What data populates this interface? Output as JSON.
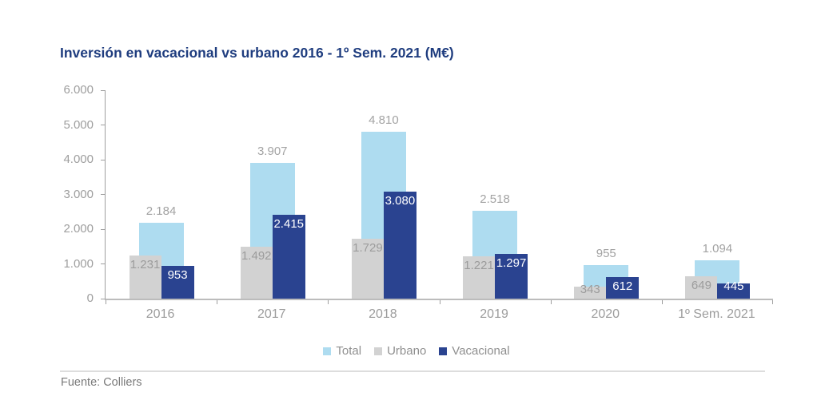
{
  "footer": {
    "source": "Fuente: Colliers"
  },
  "chart_data": {
    "type": "bar",
    "title": "Inversión en vacacional vs urbano 2016 - 1º Sem. 2021 (M€)",
    "title_color": "#1f3d7f",
    "categories": [
      "2016",
      "2017",
      "2018",
      "2019",
      "2020",
      "1º Sem. 2021"
    ],
    "series": [
      {
        "name": "Total",
        "color": "#aedcf0",
        "label_color": "#a3a3a3",
        "label_placement": "outside-top",
        "values": [
          2184,
          3907,
          4810,
          2518,
          955,
          1094
        ],
        "labels": [
          "2.184",
          "3.907",
          "4.810",
          "2.518",
          "955",
          "1.094"
        ]
      },
      {
        "name": "Urbano",
        "color": "#d2d2d2",
        "label_color": "#9c9c9c",
        "label_placement": "inside-top",
        "values": [
          1231,
          1492,
          1729,
          1221,
          343,
          649
        ],
        "labels": [
          "1.231",
          "1.492",
          "1.729",
          "1.221",
          "343",
          "649"
        ]
      },
      {
        "name": "Vacacional",
        "color": "#2a4390",
        "label_color": "#ffffff",
        "label_placement": "inside-top",
        "values": [
          953,
          2415,
          3080,
          1297,
          612,
          445
        ],
        "labels": [
          "953",
          "2.415",
          "3.080",
          "1.297",
          "612",
          "445"
        ]
      }
    ],
    "y_axis": {
      "min": 0,
      "max": 6000,
      "step": 1000,
      "tick_labels": [
        "0",
        "1.000",
        "2.000",
        "3.000",
        "4.000",
        "5.000",
        "6.000"
      ]
    },
    "legend_position": "bottom",
    "grid": false
  }
}
